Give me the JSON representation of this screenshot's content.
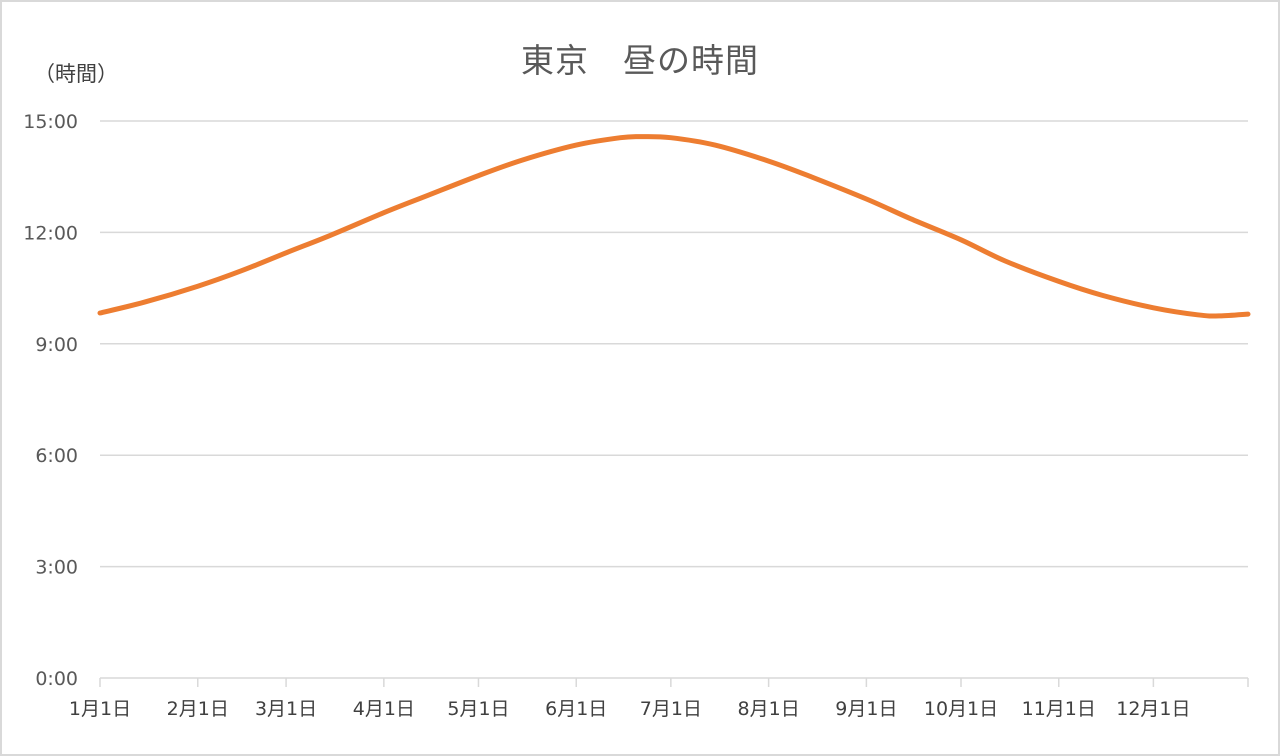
{
  "chart_data": {
    "type": "line",
    "title": "東京　昼の時間",
    "ylabel": "（時間）",
    "xlabel": "",
    "y_tick_labels": [
      "0:00",
      "3:00",
      "6:00",
      "9:00",
      "12:00",
      "15:00"
    ],
    "y_tick_hours": [
      0,
      3,
      6,
      9,
      12,
      15
    ],
    "ylim_hours": [
      0,
      15
    ],
    "x_tick_labels": [
      "1月1日",
      "2月1日",
      "3月1日",
      "4月1日",
      "5月1日",
      "6月1日",
      "7月1日",
      "8月1日",
      "9月1日",
      "10月1日",
      "11月1日",
      "12月1日"
    ],
    "xlim": [
      "1月1日",
      "12月31日"
    ],
    "grid": true,
    "legend": "none",
    "series": [
      {
        "color": "#ED7D31",
        "x": [
          "1月1日",
          "1月15日",
          "2月1日",
          "2月15日",
          "3月1日",
          "3月15日",
          "4月1日",
          "4月15日",
          "5月1日",
          "5月15日",
          "6月1日",
          "6月15日",
          "6月22日",
          "7月1日",
          "7月15日",
          "8月1日",
          "8月15日",
          "9月1日",
          "9月15日",
          "10月1日",
          "10月15日",
          "11月1日",
          "11月15日",
          "12月1日",
          "12月15日",
          "12月22日",
          "12月31日"
        ],
        "values": [
          "9:50",
          "10:07",
          "10:33",
          "10:58",
          "11:27",
          "11:55",
          "12:32",
          "13:00",
          "13:32",
          "13:57",
          "14:21",
          "14:33",
          "14:35",
          "14:33",
          "14:21",
          "13:55",
          "13:29",
          "12:54",
          "12:22",
          "11:48",
          "11:14",
          "10:41",
          "10:18",
          "9:58",
          "9:47",
          "9:45",
          "9:48"
        ],
        "hours": [
          9.83,
          10.12,
          10.55,
          10.97,
          11.45,
          11.92,
          12.53,
          13.0,
          13.53,
          13.95,
          14.35,
          14.55,
          14.58,
          14.55,
          14.35,
          13.92,
          13.48,
          12.9,
          12.37,
          11.8,
          11.23,
          10.68,
          10.3,
          9.97,
          9.78,
          9.75,
          9.8
        ]
      }
    ]
  }
}
